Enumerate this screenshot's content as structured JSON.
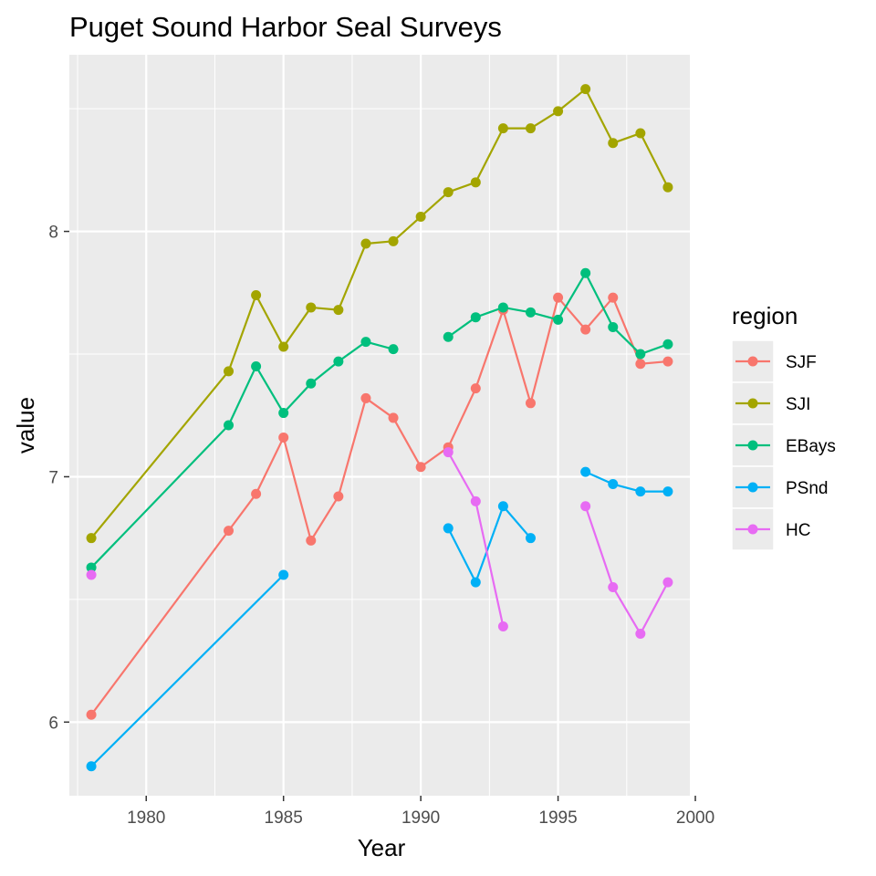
{
  "chart_data": {
    "type": "line",
    "title": "Puget Sound Harbor Seal Surveys",
    "xlabel": "Year",
    "ylabel": "value",
    "xlim": [
      1977.2,
      1999.8
    ],
    "ylim": [
      5.7,
      8.72
    ],
    "x_ticks": [
      1980,
      1985,
      1990,
      1995,
      2000
    ],
    "y_ticks": [
      6,
      7,
      8
    ],
    "grid": true,
    "legend": {
      "title": "region",
      "position": "right"
    },
    "series": [
      {
        "name": "SJF",
        "color": "#F8766D",
        "points": [
          [
            1978,
            6.03
          ],
          [
            1983,
            6.78
          ],
          [
            1984,
            6.93
          ],
          [
            1985,
            7.16
          ],
          [
            1986,
            6.74
          ],
          [
            1987,
            6.92
          ],
          [
            1988,
            7.32
          ],
          [
            1989,
            7.24
          ],
          [
            1990,
            7.04
          ],
          [
            1991,
            7.12
          ],
          [
            1992,
            7.36
          ],
          [
            1993,
            7.68
          ],
          [
            1994,
            7.3
          ],
          [
            1995,
            7.73
          ],
          [
            1996,
            7.6
          ],
          [
            1997,
            7.73
          ],
          [
            1998,
            7.46
          ],
          [
            1999,
            7.47
          ]
        ]
      },
      {
        "name": "SJI",
        "color": "#A3A500",
        "points": [
          [
            1978,
            6.75
          ],
          [
            1983,
            7.43
          ],
          [
            1984,
            7.74
          ],
          [
            1985,
            7.53
          ],
          [
            1986,
            7.69
          ],
          [
            1987,
            7.68
          ],
          [
            1988,
            7.95
          ],
          [
            1989,
            7.96
          ],
          [
            1990,
            8.06
          ],
          [
            1991,
            8.16
          ],
          [
            1992,
            8.2
          ],
          [
            1993,
            8.42
          ],
          [
            1994,
            8.42
          ],
          [
            1995,
            8.49
          ],
          [
            1996,
            8.58
          ],
          [
            1997,
            8.36
          ],
          [
            1998,
            8.4
          ],
          [
            1999,
            8.18
          ]
        ]
      },
      {
        "name": "EBays",
        "color": "#00BF7D",
        "points": [
          [
            1978,
            6.63
          ],
          [
            1983,
            7.21
          ],
          [
            1984,
            7.45
          ],
          [
            1985,
            7.26
          ],
          [
            1986,
            7.38
          ],
          [
            1987,
            7.47
          ],
          [
            1988,
            7.55
          ],
          [
            1989,
            7.52
          ],
          [
            1990,
            null
          ],
          [
            1991,
            7.57
          ],
          [
            1992,
            7.65
          ],
          [
            1993,
            7.69
          ],
          [
            1994,
            7.67
          ],
          [
            1995,
            7.64
          ],
          [
            1996,
            7.83
          ],
          [
            1997,
            7.61
          ],
          [
            1998,
            7.5
          ],
          [
            1999,
            7.54
          ]
        ]
      },
      {
        "name": "PSnd",
        "color": "#00B0F6",
        "points": [
          [
            1978,
            5.82
          ],
          [
            1985,
            6.6
          ],
          [
            1986,
            null
          ],
          [
            1991,
            6.79
          ],
          [
            1992,
            6.57
          ],
          [
            1993,
            6.88
          ],
          [
            1994,
            6.75
          ],
          [
            1995,
            null
          ],
          [
            1996,
            7.02
          ],
          [
            1997,
            6.97
          ],
          [
            1998,
            6.94
          ],
          [
            1999,
            6.94
          ]
        ]
      },
      {
        "name": "HC",
        "color": "#E76BF3",
        "points": [
          [
            1978,
            6.6
          ],
          [
            1979,
            null
          ],
          [
            1991,
            7.1
          ],
          [
            1992,
            6.9
          ],
          [
            1993,
            6.39
          ],
          [
            1994,
            null
          ],
          [
            1996,
            6.88
          ],
          [
            1997,
            6.55
          ],
          [
            1998,
            6.36
          ],
          [
            1999,
            6.57
          ]
        ]
      }
    ]
  }
}
